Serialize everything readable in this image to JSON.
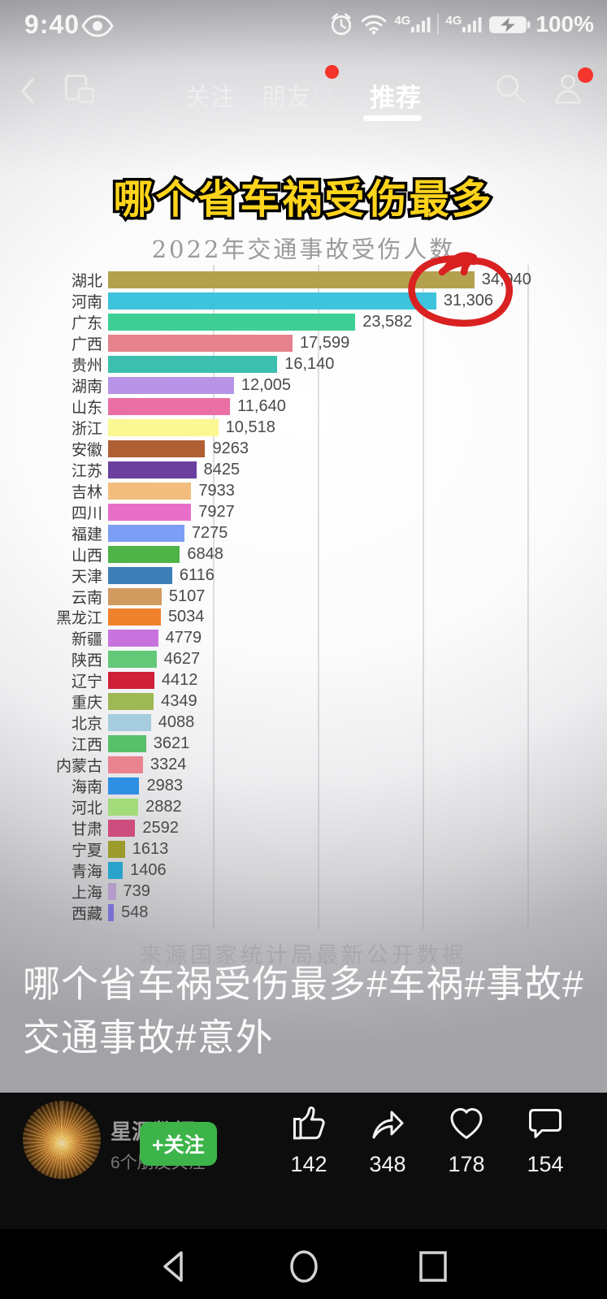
{
  "status_bar": {
    "time": "9:40",
    "network_1": "4G",
    "network_2": "4G",
    "battery_percent": "100%"
  },
  "tab_bar": {
    "tabs": [
      {
        "label": "关注",
        "active": false
      },
      {
        "label": "朋友♡",
        "active": false,
        "badge": true
      },
      {
        "label": "推荐",
        "active": true
      }
    ]
  },
  "video": {
    "headline": "哪个省车祸受伤最多",
    "caption": "哪个省车祸受伤最多#车祸#事故#交通事故#意外"
  },
  "chart_data": {
    "type": "bar",
    "orientation": "horizontal",
    "title": "2022年交通事故受伤人数",
    "source": "来源国家统计局最新公开数据",
    "categories": [
      "湖北",
      "河南",
      "广东",
      "广西",
      "贵州",
      "湖南",
      "山东",
      "浙江",
      "安徽",
      "江苏",
      "吉林",
      "四川",
      "福建",
      "山西",
      "天津",
      "云南",
      "黑龙江",
      "新疆",
      "陕西",
      "辽宁",
      "重庆",
      "北京",
      "江西",
      "内蒙古",
      "海南",
      "河北",
      "甘肃",
      "宁夏",
      "青海",
      "上海",
      "西藏"
    ],
    "values": [
      34940,
      31306,
      23582,
      17599,
      16140,
      12005,
      11640,
      10518,
      9263,
      8425,
      7933,
      7927,
      7275,
      6848,
      6116,
      5107,
      5034,
      4779,
      4627,
      4412,
      4349,
      4088,
      3621,
      3324,
      2983,
      2882,
      2592,
      1613,
      1406,
      739,
      548
    ],
    "value_labels": [
      "34,940",
      "31,306",
      "23,582",
      "17,599",
      "16,140",
      "12,005",
      "11,640",
      "10,518",
      "9263",
      "8425",
      "7933",
      "7927",
      "7275",
      "6848",
      "6116",
      "5107",
      "5034",
      "4779",
      "4627",
      "4412",
      "4349",
      "4088",
      "3621",
      "3324",
      "2983",
      "2882",
      "2592",
      "1613",
      "1406",
      "739",
      "548"
    ],
    "bar_colors": [
      "#b3a14e",
      "#3ec3dd",
      "#3ecf96",
      "#e5828b",
      "#3dbfae",
      "#b794e6",
      "#ea6fa5",
      "#fbf894",
      "#b05f35",
      "#6a3f9e",
      "#f2bd7d",
      "#e86fc8",
      "#7d9ef5",
      "#4fb348",
      "#3f7fb8",
      "#d19a5e",
      "#f0812c",
      "#c873dd",
      "#63c979",
      "#cf1f39",
      "#9eb854",
      "#a6cce0",
      "#58bf6a",
      "#e8838f",
      "#2f8fe3",
      "#a3db7a",
      "#cc4d7d",
      "#9c9c2e",
      "#29a3cc",
      "#b39cc9",
      "#7a70d2"
    ],
    "xlim": [
      0,
      42000
    ],
    "gridlines": [
      10000,
      20000,
      30000,
      40000
    ],
    "legend": null,
    "annotation": {
      "type": "hand-drawn-circle",
      "target_value": "31,306",
      "target_category": "河南",
      "color": "#d92121"
    }
  },
  "footer": {
    "username": "星源数据",
    "friends_note": "6个朋友关注",
    "follow_button": "+关注",
    "actions": [
      {
        "name": "like",
        "count": "142"
      },
      {
        "name": "share",
        "count": "348"
      },
      {
        "name": "favorite",
        "count": "178"
      },
      {
        "name": "comment",
        "count": "154"
      }
    ]
  }
}
